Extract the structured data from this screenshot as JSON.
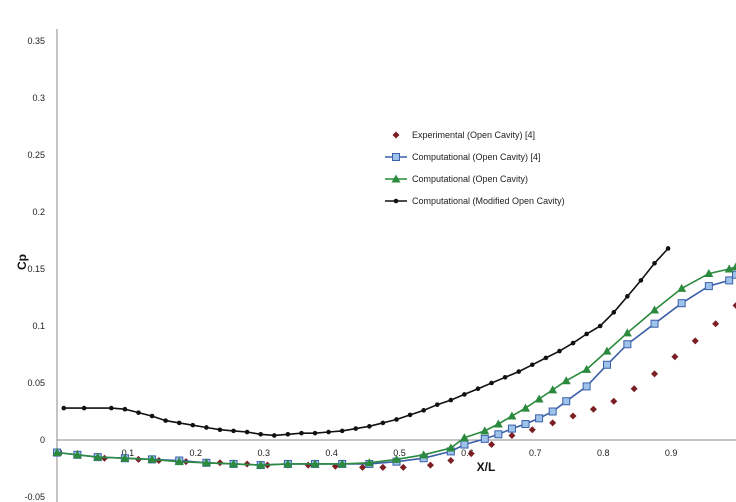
{
  "chart_data": {
    "type": "line",
    "xlabel": "X/L",
    "ylabel": "Cp",
    "xlim": [
      0,
      1.0
    ],
    "ylim": [
      -0.05,
      0.35
    ],
    "x_ticks": [
      "0",
      "0.1",
      "0.2",
      "0.3",
      "0.4",
      "0.5",
      "0.6",
      "0.7",
      "0.8",
      "0.9"
    ],
    "x_tick_values": [
      0,
      0.1,
      0.2,
      0.3,
      0.4,
      0.5,
      0.6,
      0.7,
      0.8,
      0.9
    ],
    "y_ticks": [
      "-0.05",
      "0",
      "0.05",
      "0.1",
      "0.15",
      "0.2",
      "0.25",
      "0.3",
      "0.35"
    ],
    "y_tick_values": [
      -0.05,
      0,
      0.05,
      0.1,
      0.15,
      0.2,
      0.25,
      0.3,
      0.35
    ],
    "grid": false,
    "legend_position": "center-right",
    "series": [
      {
        "name": "Experimental (Open Cavity) [4]",
        "color": "#7b1f24",
        "marker": "diamond",
        "line": false,
        "x": [
          0.03,
          0.07,
          0.12,
          0.15,
          0.19,
          0.24,
          0.28,
          0.31,
          0.34,
          0.37,
          0.41,
          0.45,
          0.48,
          0.51,
          0.55,
          0.58,
          0.61,
          0.64,
          0.67,
          0.7,
          0.73,
          0.76,
          0.79,
          0.82,
          0.85,
          0.88,
          0.91,
          0.94,
          0.97,
          1.0
        ],
        "y": [
          -0.012,
          -0.016,
          -0.017,
          -0.018,
          -0.019,
          -0.02,
          -0.021,
          -0.022,
          -0.022,
          -0.022,
          -0.023,
          -0.024,
          -0.024,
          -0.024,
          -0.022,
          -0.018,
          -0.012,
          -0.004,
          0.004,
          0.009,
          0.015,
          0.021,
          0.027,
          0.034,
          0.045,
          0.058,
          0.073,
          0.087,
          0.102,
          0.118
        ]
      },
      {
        "name": "Computational (Open Cavity) [4]",
        "color": "#3b5fa8",
        "fill": "#9ec3ea",
        "marker": "square",
        "line": true,
        "x": [
          0.0,
          0.03,
          0.06,
          0.1,
          0.14,
          0.18,
          0.22,
          0.26,
          0.3,
          0.34,
          0.38,
          0.42,
          0.46,
          0.5,
          0.54,
          0.58,
          0.6,
          0.63,
          0.65,
          0.67,
          0.69,
          0.71,
          0.73,
          0.75,
          0.78,
          0.81,
          0.84,
          0.88,
          0.92,
          0.96,
          0.99,
          1.0
        ],
        "y": [
          -0.011,
          -0.013,
          -0.015,
          -0.016,
          -0.017,
          -0.018,
          -0.02,
          -0.021,
          -0.022,
          -0.021,
          -0.021,
          -0.021,
          -0.021,
          -0.019,
          -0.016,
          -0.01,
          -0.004,
          0.001,
          0.005,
          0.01,
          0.014,
          0.019,
          0.025,
          0.034,
          0.047,
          0.066,
          0.084,
          0.102,
          0.12,
          0.135,
          0.14,
          0.145
        ]
      },
      {
        "name": "Computational (Open Cavity)",
        "color": "#2b8a3e",
        "marker": "triangle",
        "line": true,
        "x": [
          0.0,
          0.03,
          0.06,
          0.1,
          0.14,
          0.18,
          0.22,
          0.26,
          0.3,
          0.34,
          0.38,
          0.42,
          0.46,
          0.5,
          0.54,
          0.58,
          0.6,
          0.63,
          0.65,
          0.67,
          0.69,
          0.71,
          0.73,
          0.75,
          0.78,
          0.81,
          0.84,
          0.88,
          0.92,
          0.96,
          0.99,
          1.0
        ],
        "y": [
          -0.011,
          -0.013,
          -0.015,
          -0.016,
          -0.017,
          -0.019,
          -0.02,
          -0.021,
          -0.022,
          -0.021,
          -0.021,
          -0.021,
          -0.02,
          -0.017,
          -0.013,
          -0.007,
          0.002,
          0.008,
          0.014,
          0.021,
          0.028,
          0.036,
          0.044,
          0.052,
          0.062,
          0.078,
          0.094,
          0.114,
          0.133,
          0.146,
          0.15,
          0.152
        ]
      },
      {
        "name": "Computational (Modified Open Cavity)",
        "color": "#111111",
        "marker": "circle",
        "line": true,
        "x": [
          0.01,
          0.04,
          0.08,
          0.1,
          0.12,
          0.14,
          0.16,
          0.18,
          0.2,
          0.22,
          0.24,
          0.26,
          0.28,
          0.3,
          0.32,
          0.34,
          0.36,
          0.38,
          0.4,
          0.42,
          0.44,
          0.46,
          0.48,
          0.5,
          0.52,
          0.54,
          0.56,
          0.58,
          0.6,
          0.62,
          0.64,
          0.66,
          0.68,
          0.7,
          0.72,
          0.74,
          0.76,
          0.78,
          0.8,
          0.82,
          0.84,
          0.86,
          0.88,
          0.9
        ],
        "y": [
          0.028,
          0.028,
          0.028,
          0.027,
          0.024,
          0.021,
          0.017,
          0.015,
          0.013,
          0.011,
          0.009,
          0.008,
          0.007,
          0.005,
          0.004,
          0.005,
          0.006,
          0.006,
          0.007,
          0.008,
          0.01,
          0.012,
          0.015,
          0.018,
          0.022,
          0.026,
          0.031,
          0.035,
          0.04,
          0.045,
          0.05,
          0.055,
          0.06,
          0.066,
          0.072,
          0.078,
          0.085,
          0.093,
          0.1,
          0.112,
          0.126,
          0.14,
          0.155,
          0.168
        ]
      }
    ]
  }
}
